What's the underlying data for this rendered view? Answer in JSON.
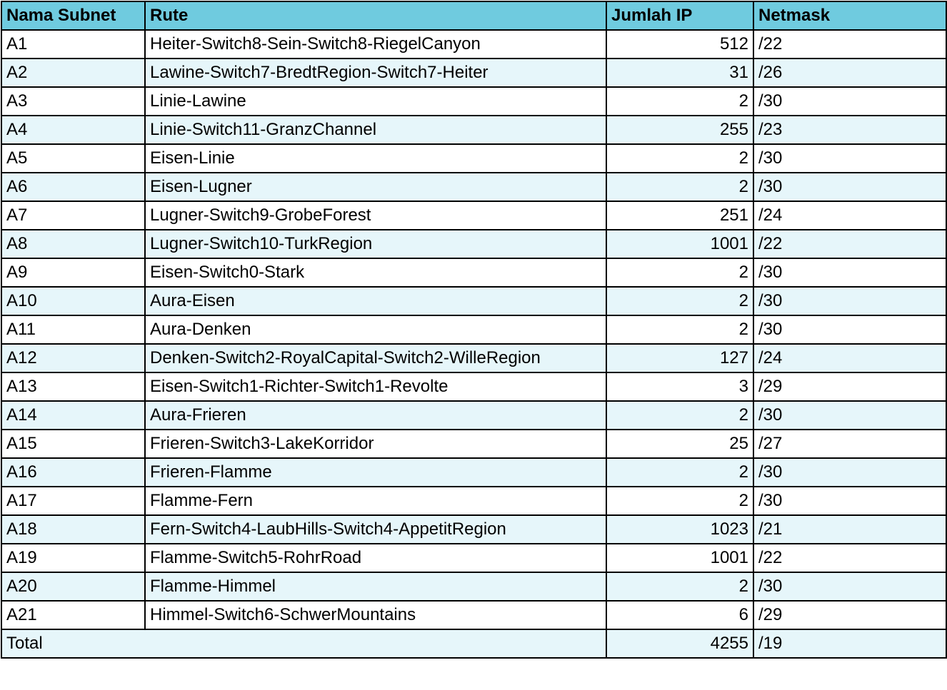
{
  "headers": {
    "name": "Nama Subnet",
    "route": "Rute",
    "ip": "Jumlah IP",
    "mask": "Netmask"
  },
  "rows": [
    {
      "name": "A1",
      "route": "Heiter-Switch8-Sein-Switch8-RiegelCanyon",
      "ip": "512",
      "mask": "/22"
    },
    {
      "name": "A2",
      "route": "Lawine-Switch7-BredtRegion-Switch7-Heiter",
      "ip": "31",
      "mask": "/26"
    },
    {
      "name": "A3",
      "route": "Linie-Lawine",
      "ip": "2",
      "mask": "/30"
    },
    {
      "name": "A4",
      "route": "Linie-Switch11-GranzChannel",
      "ip": "255",
      "mask": "/23"
    },
    {
      "name": "A5",
      "route": "Eisen-Linie",
      "ip": "2",
      "mask": "/30"
    },
    {
      "name": "A6",
      "route": "Eisen-Lugner",
      "ip": "2",
      "mask": "/30"
    },
    {
      "name": "A7",
      "route": "Lugner-Switch9-GrobeForest",
      "ip": "251",
      "mask": "/24"
    },
    {
      "name": "A8",
      "route": "Lugner-Switch10-TurkRegion",
      "ip": "1001",
      "mask": "/22"
    },
    {
      "name": "A9",
      "route": "Eisen-Switch0-Stark",
      "ip": "2",
      "mask": "/30"
    },
    {
      "name": "A10",
      "route": "Aura-Eisen",
      "ip": "2",
      "mask": "/30"
    },
    {
      "name": "A11",
      "route": "Aura-Denken",
      "ip": "2",
      "mask": "/30"
    },
    {
      "name": "A12",
      "route": "Denken-Switch2-RoyalCapital-Switch2-WilleRegion",
      "ip": "127",
      "mask": "/24"
    },
    {
      "name": "A13",
      "route": "Eisen-Switch1-Richter-Switch1-Revolte",
      "ip": "3",
      "mask": "/29"
    },
    {
      "name": "A14",
      "route": "Aura-Frieren",
      "ip": "2",
      "mask": "/30"
    },
    {
      "name": "A15",
      "route": "Frieren-Switch3-LakeKorridor",
      "ip": "25",
      "mask": "/27"
    },
    {
      "name": "A16",
      "route": "Frieren-Flamme",
      "ip": "2",
      "mask": "/30"
    },
    {
      "name": "A17",
      "route": "Flamme-Fern",
      "ip": "2",
      "mask": "/30"
    },
    {
      "name": "A18",
      "route": "Fern-Switch4-LaubHills-Switch4-AppetitRegion",
      "ip": "1023",
      "mask": "/21"
    },
    {
      "name": "A19",
      "route": "Flamme-Switch5-RohrRoad",
      "ip": "1001",
      "mask": "/22"
    },
    {
      "name": "A20",
      "route": "Flamme-Himmel",
      "ip": "2",
      "mask": "/30"
    },
    {
      "name": "A21",
      "route": "Himmel-Switch6-SchwerMountains",
      "ip": "6",
      "mask": "/29"
    }
  ],
  "total": {
    "label": "Total",
    "ip": "4255",
    "mask": "/19"
  },
  "colors": {
    "header_bg": "#6fcbdf",
    "stripe_bg": "#e6f6fa",
    "border": "#000000"
  }
}
